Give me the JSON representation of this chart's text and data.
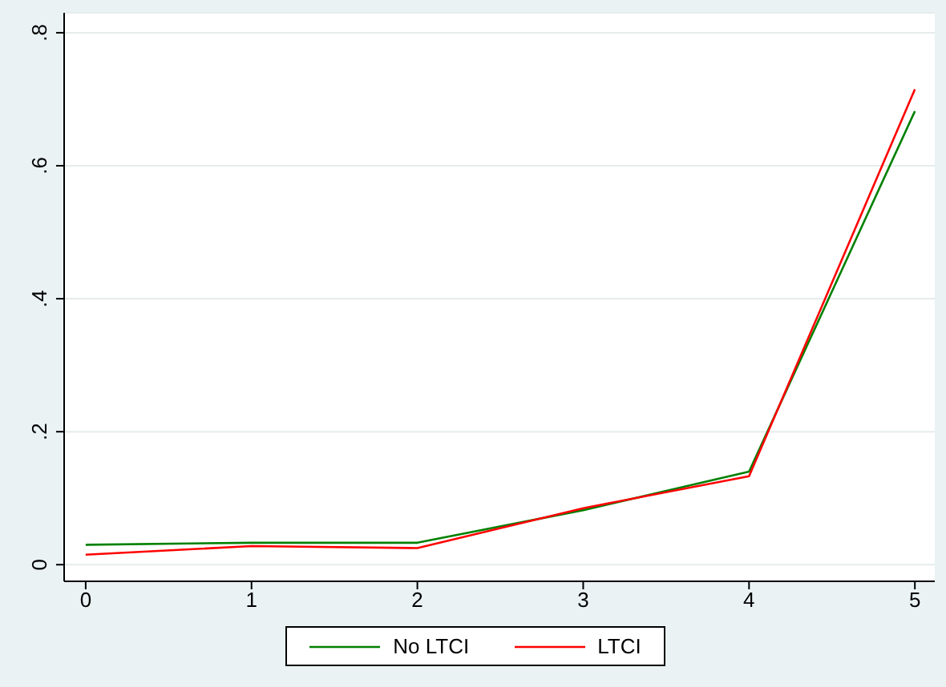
{
  "chart_data": {
    "type": "line",
    "x": [
      0,
      1,
      2,
      3,
      4,
      5
    ],
    "series": [
      {
        "name": "No LTCI",
        "color": "#008000",
        "values": [
          0.03,
          0.033,
          0.033,
          0.082,
          0.14,
          0.682
        ]
      },
      {
        "name": "LTCI",
        "color": "#ff0000",
        "values": [
          0.015,
          0.028,
          0.025,
          0.085,
          0.133,
          0.715
        ]
      }
    ],
    "xlim": [
      -0.13,
      5.12
    ],
    "xticks": [
      0,
      1,
      2,
      3,
      4,
      5
    ],
    "ylim": [
      -0.025,
      0.83
    ],
    "yticks": [
      {
        "value": 0,
        "label": "0"
      },
      {
        "value": 0.2,
        "label": ".2"
      },
      {
        "value": 0.4,
        "label": ".4"
      },
      {
        "value": 0.6,
        "label": ".6"
      },
      {
        "value": 0.8,
        "label": ".8"
      }
    ],
    "grid": "y",
    "legend": "bottom",
    "marker": "none",
    "line_style": "solid"
  }
}
